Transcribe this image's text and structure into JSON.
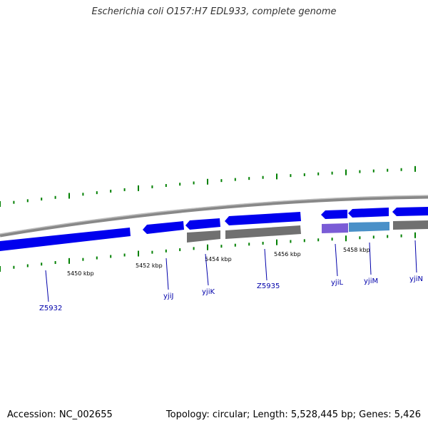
{
  "title": "Escherichia coli O157:H7 EDL933, complete genome",
  "footer": {
    "accession": "Accession: NC_002655",
    "stats": "Topology: circular; Length: 5,528,445 bp; Genes: 5,426"
  },
  "colors": {
    "forward_gene": "#0000ee",
    "reverse_gene": "#707070",
    "gene_label": "#0000aa",
    "tick": "#008000",
    "backbone": "#888888",
    "highlight_purple": "#7a5cd6",
    "highlight_blue": "#4a90c8"
  },
  "scale_labels": [
    "5450 kbp",
    "5452 kbp",
    "5454 kbp",
    "5456 kbp",
    "5458 kbp"
  ],
  "genes": [
    {
      "label": "Z5932"
    },
    {
      "label": "yjiJ"
    },
    {
      "label": "yjiK"
    },
    {
      "label": "Z5935"
    },
    {
      "label": "yjiL"
    },
    {
      "label": "yjiM"
    },
    {
      "label": "yjiN"
    }
  ]
}
